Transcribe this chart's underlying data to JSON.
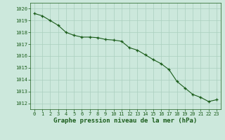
{
  "x": [
    0,
    1,
    2,
    3,
    4,
    5,
    6,
    7,
    8,
    9,
    10,
    11,
    12,
    13,
    14,
    15,
    16,
    17,
    18,
    19,
    20,
    21,
    22,
    23
  ],
  "y": [
    1019.6,
    1019.4,
    1019.0,
    1018.6,
    1018.0,
    1017.75,
    1017.6,
    1017.6,
    1017.55,
    1017.4,
    1017.35,
    1017.25,
    1016.7,
    1016.5,
    1016.1,
    1015.7,
    1015.35,
    1014.85,
    1013.85,
    1013.3,
    1012.75,
    1012.5,
    1012.15,
    1012.3
  ],
  "line_color": "#1a5c1a",
  "bg_color": "#cce8dc",
  "grid_color": "#aacfbe",
  "xlabel": "Graphe pression niveau de la mer (hPa)",
  "ylim": [
    1011.5,
    1020.5
  ],
  "yticks": [
    1012,
    1013,
    1014,
    1015,
    1016,
    1017,
    1018,
    1019,
    1020
  ],
  "xticks": [
    0,
    1,
    2,
    3,
    4,
    5,
    6,
    7,
    8,
    9,
    10,
    11,
    12,
    13,
    14,
    15,
    16,
    17,
    18,
    19,
    20,
    21,
    22,
    23
  ],
  "tick_fontsize": 5.0,
  "xlabel_fontsize": 6.5
}
